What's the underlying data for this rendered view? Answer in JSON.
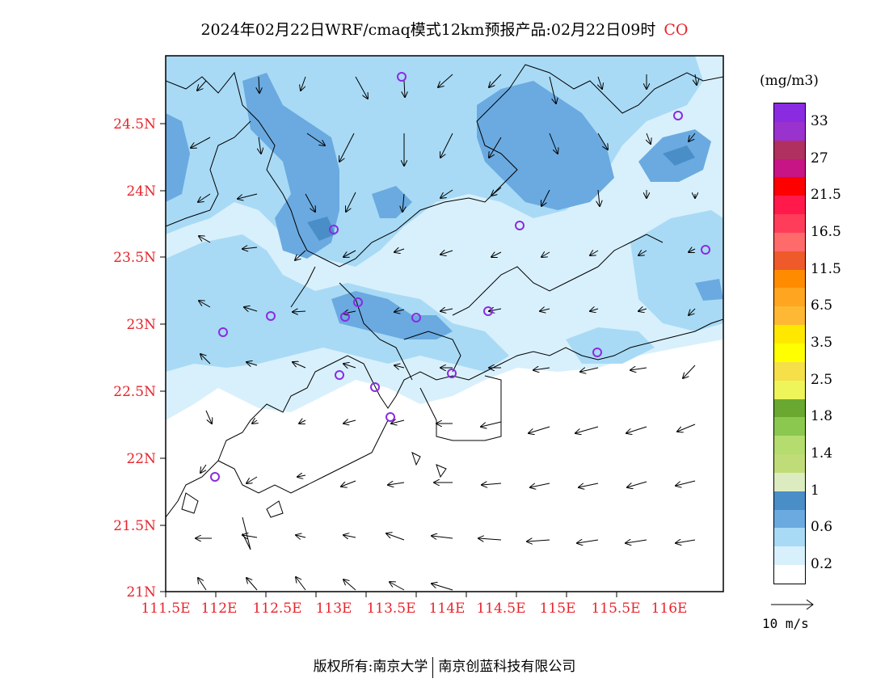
{
  "title": {
    "main": "2024年02月22日WRF/cmaq模式12km预报产品:02月22日09时",
    "species": "CO"
  },
  "axes": {
    "y_ticks": [
      "24.5N",
      "24N",
      "23.5N",
      "23N",
      "22.5N",
      "22N",
      "21.5N",
      "21N"
    ],
    "x_ticks": [
      "111.5E",
      "112E",
      "112.5E",
      "113E",
      "113.5E",
      "114E",
      "114.5E",
      "115E",
      "115.5E",
      "116E"
    ]
  },
  "legend": {
    "unit": "(mg/m3)",
    "labels": [
      "33",
      "27",
      "21.5",
      "16.5",
      "11.5",
      "6.5",
      "3.5",
      "2.5",
      "1.8",
      "1.4",
      "1",
      "0.6",
      "0.2"
    ],
    "colors": [
      "#8a2be2",
      "#9a32cd",
      "#b03060",
      "#c71585",
      "#ff0000",
      "#ff1a4b",
      "#ff3c5a",
      "#ff6a6a",
      "#ee5a2a",
      "#ff8c00",
      "#ffa520",
      "#ffb833",
      "#ffe800",
      "#ffff00",
      "#f5e04a",
      "#eef55a",
      "#6aa832",
      "#8ac850",
      "#b4dc6e",
      "#c0dc78",
      "#dcecc0",
      "#4a8ec8",
      "#6aaae0",
      "#a8daf5",
      "#d8f0fc",
      "#ffffff"
    ]
  },
  "reference_vector": {
    "label": "10 m/s"
  },
  "map_colors": {
    "level_0_6": "#a8daf5",
    "level_0_2": "#d8f0fc",
    "level_1": "#6aaae0",
    "level_1_high": "#4a8ec8",
    "marker": "#8a2be2"
  },
  "footer": {
    "left": "版权所有:南京大学",
    "right": "南京创蓝科技有限公司"
  }
}
